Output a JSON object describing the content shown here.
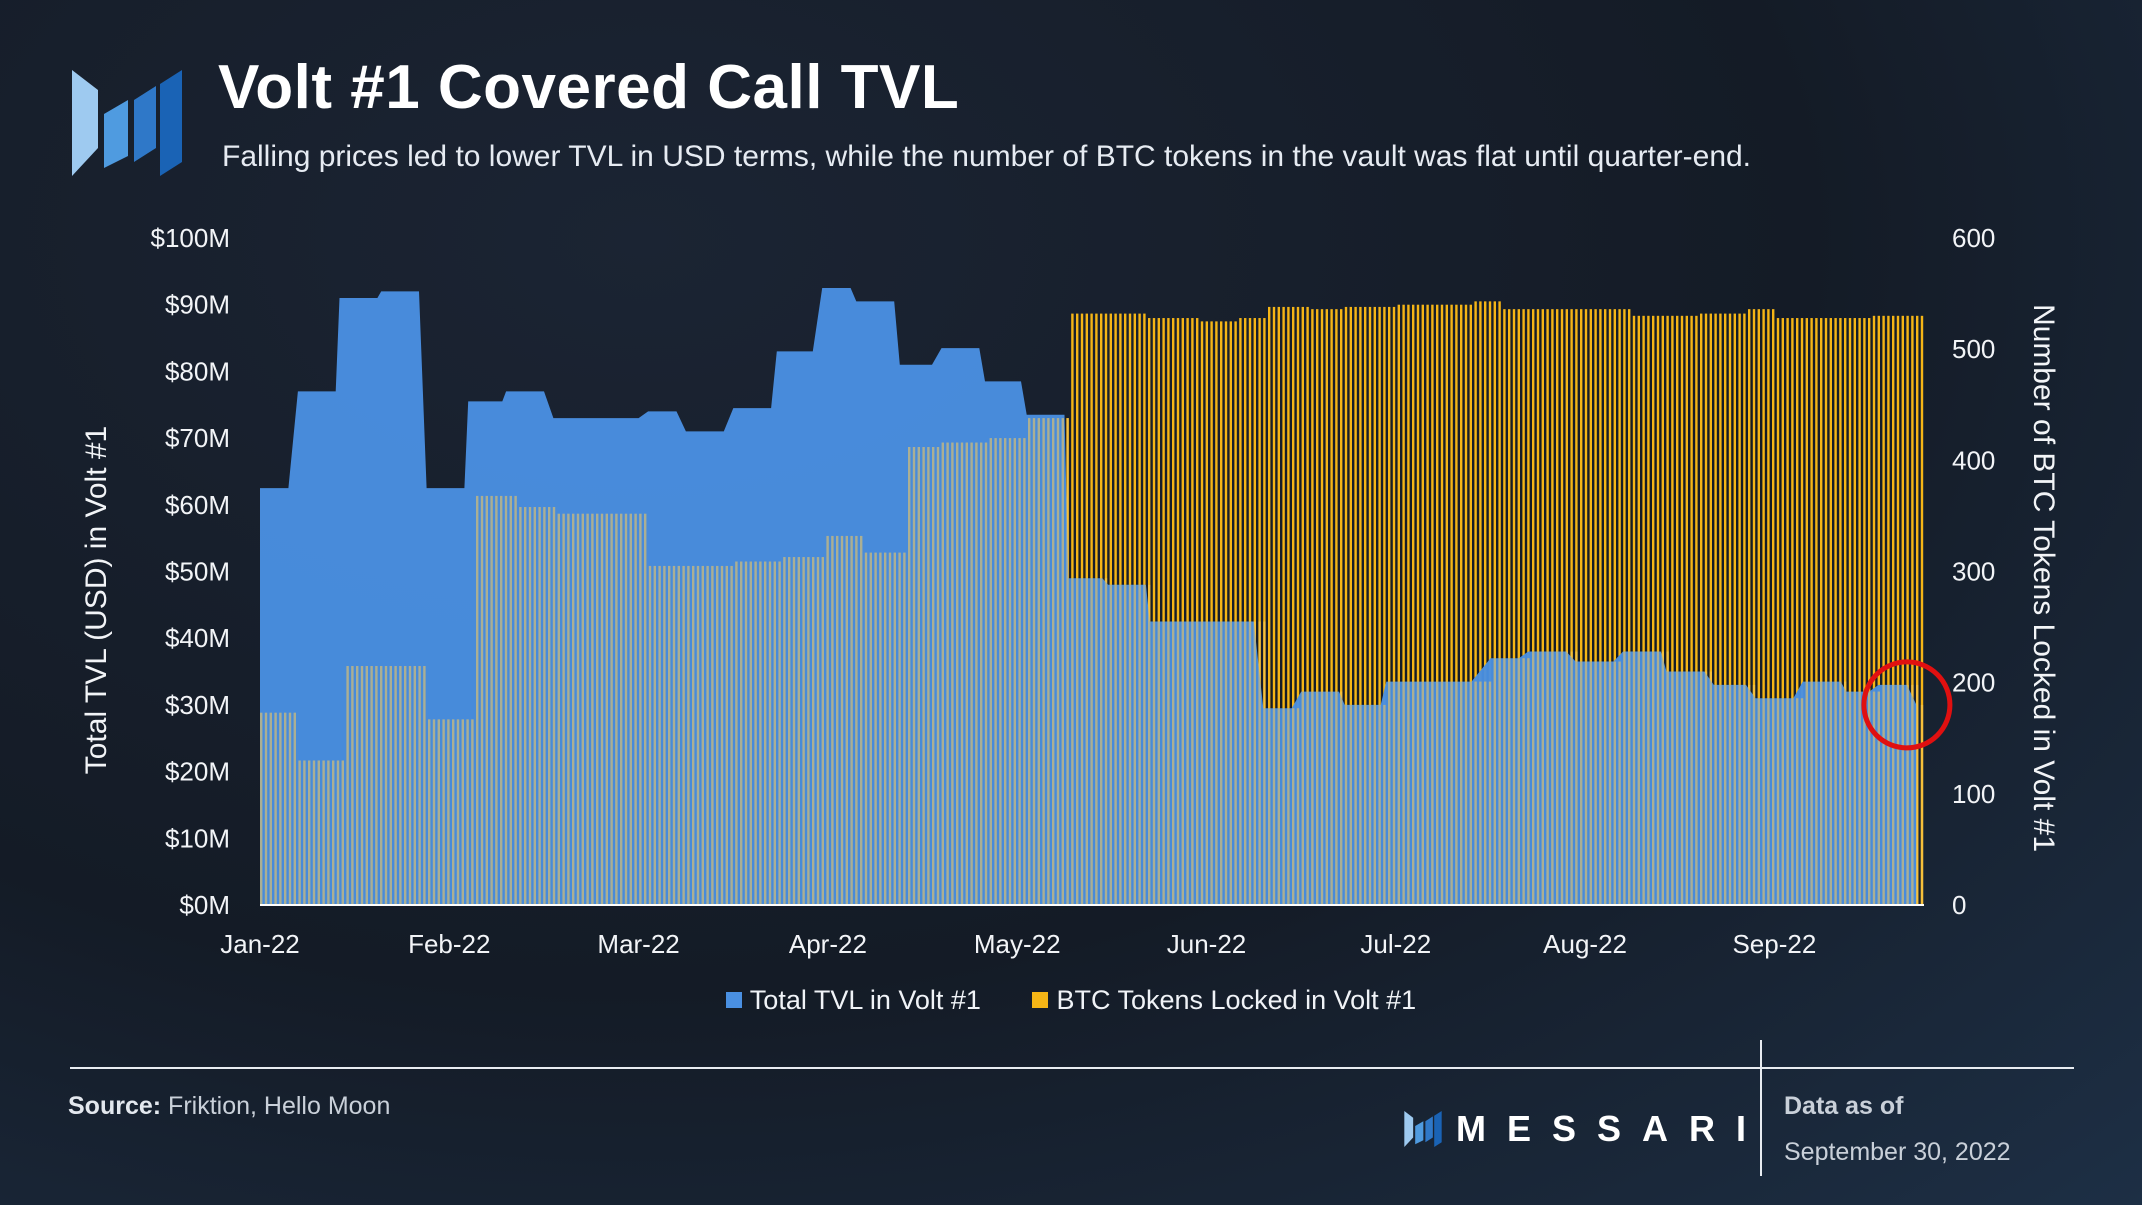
{
  "header": {
    "title": "Volt #1 Covered Call TVL",
    "subtitle": "Falling prices led to lower TVL in USD terms, while the number of BTC tokens in the vault was flat until quarter-end."
  },
  "legend": {
    "tvl_label": "Total TVL in Volt #1",
    "btc_label": "BTC Tokens Locked in Volt #1"
  },
  "footer": {
    "source_label": "Source:",
    "source_text": "Friktion, Hello Moon",
    "brand": "MESSARI",
    "as_of_label": "Data as of",
    "as_of_date": "September 30, 2022"
  },
  "colors": {
    "tvl": "#4a90e2",
    "btc": "#f5b516",
    "annotation": "#e01010"
  },
  "chart_data": {
    "type": "area",
    "title": "Volt #1 Covered Call TVL",
    "x_months": [
      "Jan-22",
      "Feb-22",
      "Mar-22",
      "Apr-22",
      "May-22",
      "Jun-22",
      "Jul-22",
      "Aug-22",
      "Sep-22"
    ],
    "y_left": {
      "label": "Total TVL (USD) in Volt #1",
      "ticks": [
        "$0M",
        "$10M",
        "$20M",
        "$30M",
        "$40M",
        "$50M",
        "$60M",
        "$70M",
        "$80M",
        "$90M",
        "$100M"
      ],
      "lim": [
        0,
        100
      ]
    },
    "y_right": {
      "label": "Number of BTC Tokens Locked in Volt #1",
      "ticks": [
        "0",
        "100",
        "200",
        "300",
        "400",
        "500",
        "600"
      ],
      "lim": [
        0,
        600
      ]
    },
    "series": [
      {
        "name": "Total TVL in Volt #1",
        "type": "area",
        "axis": "left",
        "unit": "USD millions",
        "points": [
          [
            0,
            62.5
          ],
          [
            0.15,
            62.5
          ],
          [
            0.2,
            77
          ],
          [
            0.4,
            77
          ],
          [
            0.42,
            91
          ],
          [
            0.62,
            91
          ],
          [
            0.64,
            92
          ],
          [
            0.84,
            92
          ],
          [
            0.88,
            62.5
          ],
          [
            1.08,
            62.5
          ],
          [
            1.1,
            75.5
          ],
          [
            1.28,
            75.5
          ],
          [
            1.3,
            77
          ],
          [
            1.5,
            77
          ],
          [
            1.55,
            73
          ],
          [
            1.75,
            73
          ],
          [
            1.78,
            73
          ],
          [
            2.0,
            73
          ],
          [
            2.05,
            74
          ],
          [
            2.2,
            74
          ],
          [
            2.25,
            71
          ],
          [
            2.45,
            71
          ],
          [
            2.5,
            74.5
          ],
          [
            2.7,
            74.5
          ],
          [
            2.73,
            83
          ],
          [
            2.92,
            83
          ],
          [
            2.97,
            92.5
          ],
          [
            3.12,
            92.5
          ],
          [
            3.15,
            90.5
          ],
          [
            3.35,
            90.5
          ],
          [
            3.38,
            81
          ],
          [
            3.55,
            81
          ],
          [
            3.6,
            83.5
          ],
          [
            3.8,
            83.5
          ],
          [
            3.83,
            78.5
          ],
          [
            4.02,
            78.5
          ],
          [
            4.05,
            73.5
          ],
          [
            4.25,
            73.5
          ],
          [
            4.27,
            49
          ],
          [
            4.45,
            49
          ],
          [
            4.48,
            48
          ],
          [
            4.68,
            48
          ],
          [
            4.7,
            42.5
          ],
          [
            5.0,
            42.5
          ],
          [
            5.1,
            42.5
          ],
          [
            5.25,
            42.5
          ],
          [
            5.3,
            29.5
          ],
          [
            5.45,
            29.5
          ],
          [
            5.5,
            32
          ],
          [
            5.7,
            32
          ],
          [
            5.73,
            30
          ],
          [
            5.92,
            30
          ],
          [
            5.95,
            33.5
          ],
          [
            6.15,
            33.5
          ],
          [
            6.4,
            33.5
          ],
          [
            6.5,
            37
          ],
          [
            6.65,
            37
          ],
          [
            6.7,
            38
          ],
          [
            6.9,
            38
          ],
          [
            6.95,
            36.5
          ],
          [
            7.15,
            36.5
          ],
          [
            7.2,
            38
          ],
          [
            7.4,
            38
          ],
          [
            7.43,
            35
          ],
          [
            7.63,
            35
          ],
          [
            7.68,
            33
          ],
          [
            7.85,
            33
          ],
          [
            7.9,
            31
          ],
          [
            8.1,
            31
          ],
          [
            8.15,
            33.5
          ],
          [
            8.35,
            33.5
          ],
          [
            8.38,
            32
          ],
          [
            8.5,
            32
          ],
          [
            8.55,
            33
          ],
          [
            8.7,
            33
          ],
          [
            8.75,
            30
          ]
        ]
      },
      {
        "name": "BTC Tokens Locked in Volt #1",
        "type": "bar",
        "axis": "right",
        "unit": "BTC",
        "points": [
          [
            0,
            173
          ],
          [
            0.2,
            130
          ],
          [
            0.45,
            215
          ],
          [
            0.88,
            167
          ],
          [
            1.12,
            368
          ],
          [
            1.35,
            358
          ],
          [
            1.55,
            352
          ],
          [
            2.03,
            305
          ],
          [
            2.5,
            309
          ],
          [
            2.75,
            313
          ],
          [
            2.97,
            332
          ],
          [
            3.17,
            317
          ],
          [
            3.4,
            412
          ],
          [
            3.6,
            416
          ],
          [
            3.85,
            420
          ],
          [
            4.05,
            438
          ],
          [
            4.27,
            532
          ],
          [
            4.48,
            532
          ],
          [
            4.68,
            528
          ],
          [
            4.95,
            525
          ],
          [
            5.15,
            528
          ],
          [
            5.3,
            538
          ],
          [
            5.55,
            536
          ],
          [
            5.73,
            538
          ],
          [
            6.0,
            540
          ],
          [
            6.4,
            543
          ],
          [
            6.55,
            536
          ],
          [
            6.85,
            536
          ],
          [
            7.25,
            530
          ],
          [
            7.6,
            532
          ],
          [
            7.85,
            536
          ],
          [
            8.0,
            528
          ],
          [
            8.3,
            528
          ],
          [
            8.5,
            530
          ],
          [
            8.75,
            530
          ]
        ]
      }
    ],
    "annotation": {
      "type": "circle",
      "label": "",
      "x_month_index": 8.7,
      "y_left_value": 30
    },
    "legend_position": "bottom-center"
  }
}
